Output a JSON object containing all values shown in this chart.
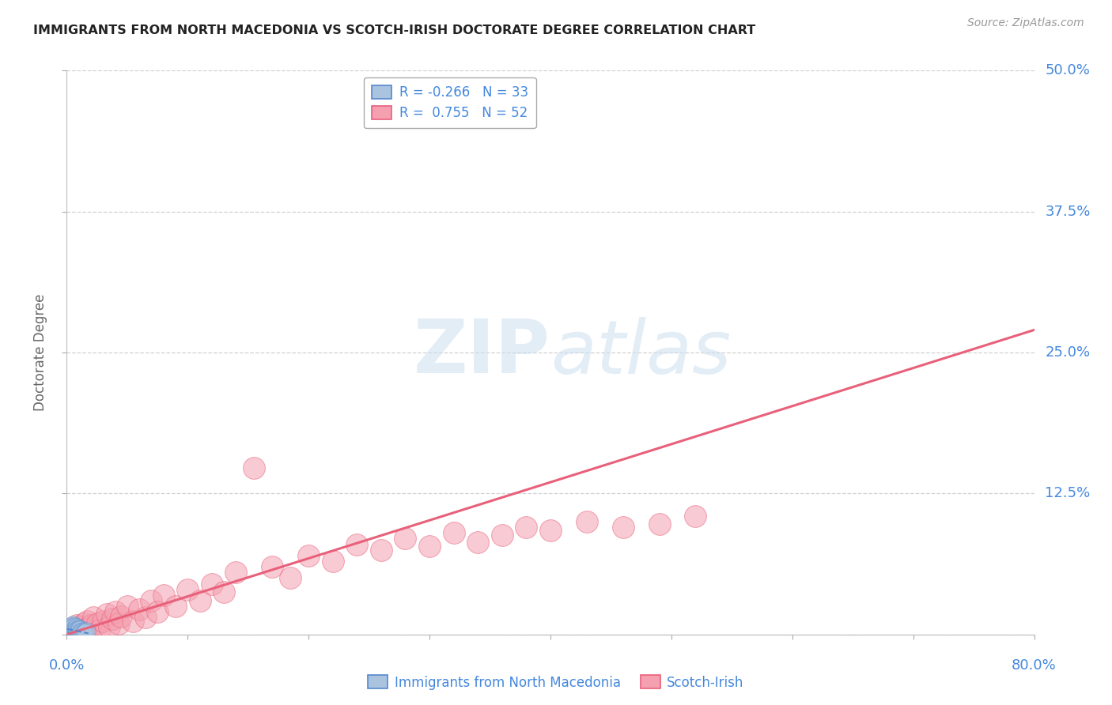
{
  "title": "IMMIGRANTS FROM NORTH MACEDONIA VS SCOTCH-IRISH DOCTORATE DEGREE CORRELATION CHART",
  "source": "Source: ZipAtlas.com",
  "ylabel": "Doctorate Degree",
  "xlim": [
    0,
    0.8
  ],
  "ylim": [
    0,
    0.5
  ],
  "yticks": [
    0,
    0.125,
    0.25,
    0.375,
    0.5
  ],
  "ytick_labels": [
    "",
    "12.5%",
    "25.0%",
    "37.5%",
    "50.0%"
  ],
  "xticks": [
    0.0,
    0.1,
    0.2,
    0.3,
    0.4,
    0.5,
    0.6,
    0.7,
    0.8
  ],
  "watermark_text": "ZIPatlas",
  "legend_r_blue": "-0.266",
  "legend_n_blue": "33",
  "legend_r_pink": "0.755",
  "legend_n_pink": "52",
  "blue_color": "#aac4e0",
  "pink_color": "#f4a0b0",
  "trend_blue_color": "#5588cc",
  "trend_pink_color": "#e8607a",
  "grid_color": "#d0d0d0",
  "title_color": "#222222",
  "axis_label_color": "#4488dd",
  "source_color": "#999999",
  "ylabel_color": "#666666",
  "blue_points_x": [
    0.001,
    0.002,
    0.002,
    0.003,
    0.003,
    0.003,
    0.004,
    0.004,
    0.004,
    0.005,
    0.005,
    0.005,
    0.005,
    0.006,
    0.006,
    0.006,
    0.007,
    0.007,
    0.007,
    0.008,
    0.008,
    0.008,
    0.009,
    0.009,
    0.01,
    0.01,
    0.011,
    0.011,
    0.012,
    0.013,
    0.014,
    0.015,
    0.016
  ],
  "blue_points_y": [
    0.003,
    0.002,
    0.005,
    0.001,
    0.004,
    0.006,
    0.002,
    0.005,
    0.007,
    0.001,
    0.003,
    0.006,
    0.008,
    0.002,
    0.004,
    0.007,
    0.001,
    0.003,
    0.005,
    0.002,
    0.004,
    0.006,
    0.001,
    0.004,
    0.002,
    0.005,
    0.001,
    0.004,
    0.002,
    0.003,
    0.002,
    0.001,
    0.003
  ],
  "pink_points_x": [
    0.003,
    0.005,
    0.007,
    0.008,
    0.01,
    0.012,
    0.014,
    0.015,
    0.017,
    0.018,
    0.02,
    0.022,
    0.025,
    0.027,
    0.03,
    0.033,
    0.035,
    0.038,
    0.04,
    0.043,
    0.045,
    0.05,
    0.055,
    0.06,
    0.065,
    0.07,
    0.075,
    0.08,
    0.09,
    0.1,
    0.11,
    0.12,
    0.13,
    0.14,
    0.155,
    0.17,
    0.185,
    0.2,
    0.22,
    0.24,
    0.26,
    0.28,
    0.3,
    0.32,
    0.34,
    0.36,
    0.38,
    0.4,
    0.43,
    0.46,
    0.49,
    0.52
  ],
  "pink_points_y": [
    0.002,
    0.005,
    0.003,
    0.008,
    0.004,
    0.007,
    0.01,
    0.005,
    0.012,
    0.006,
    0.008,
    0.015,
    0.01,
    0.004,
    0.012,
    0.018,
    0.007,
    0.014,
    0.02,
    0.01,
    0.016,
    0.025,
    0.012,
    0.022,
    0.015,
    0.03,
    0.02,
    0.035,
    0.025,
    0.04,
    0.03,
    0.045,
    0.038,
    0.055,
    0.148,
    0.06,
    0.05,
    0.07,
    0.065,
    0.08,
    0.075,
    0.085,
    0.078,
    0.09,
    0.082,
    0.088,
    0.095,
    0.092,
    0.1,
    0.095,
    0.098,
    0.105
  ],
  "pink_trend_x": [
    0.0,
    0.8
  ],
  "pink_trend_y": [
    0.0,
    0.27
  ],
  "blue_trend_x": [
    0.0,
    0.018
  ],
  "blue_trend_y": [
    0.005,
    0.001
  ]
}
